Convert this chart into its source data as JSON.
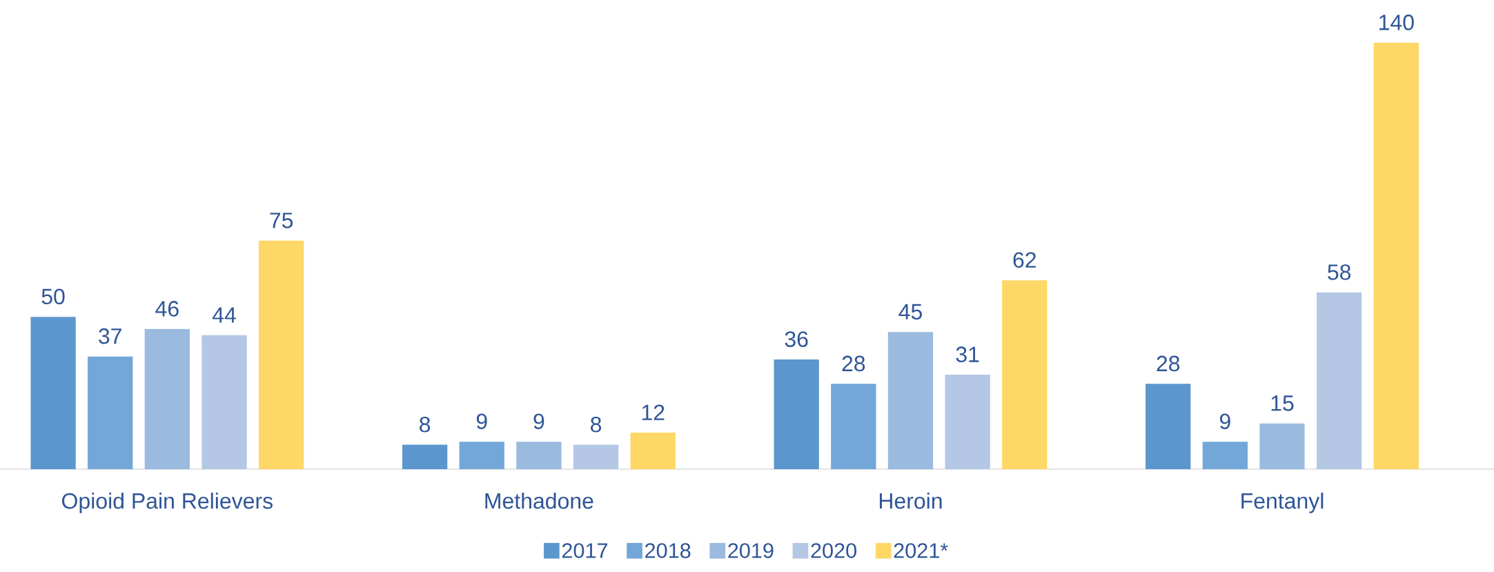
{
  "chart_data": {
    "type": "bar",
    "categories": [
      "Opioid Pain Relievers",
      "Methadone",
      "Heroin",
      "Fentanyl"
    ],
    "series": [
      {
        "name": "2017",
        "color": "#5b97cc",
        "values": [
          50,
          8,
          36,
          28
        ]
      },
      {
        "name": "2018",
        "color": "#73a7d8",
        "values": [
          37,
          9,
          28,
          9
        ]
      },
      {
        "name": "2019",
        "color": "#9abadf",
        "values": [
          46,
          9,
          45,
          15
        ]
      },
      {
        "name": "2020",
        "color": "#b4c8e5",
        "values": [
          44,
          8,
          31,
          58
        ]
      },
      {
        "name": "2021*",
        "color": "#fed866",
        "values": [
          75,
          12,
          62,
          140
        ]
      }
    ],
    "data_labels": true,
    "legend": "bottom"
  }
}
